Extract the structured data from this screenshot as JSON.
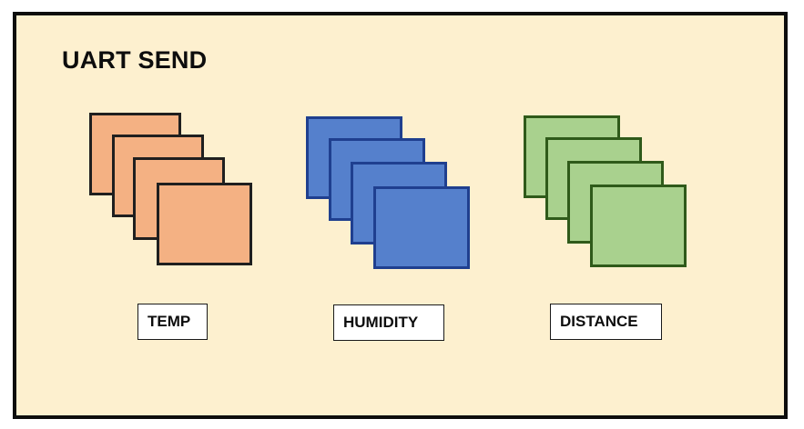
{
  "title": "UART SEND",
  "groups": [
    {
      "label": "TEMP",
      "fill": "#f4b183",
      "stroke": "#1f1f1f"
    },
    {
      "label": "HUMIDITY",
      "fill": "#5580cc",
      "stroke": "#1f3f8f"
    },
    {
      "label": "DISTANCE",
      "fill": "#a9d18e",
      "stroke": "#2f5a1a"
    }
  ]
}
